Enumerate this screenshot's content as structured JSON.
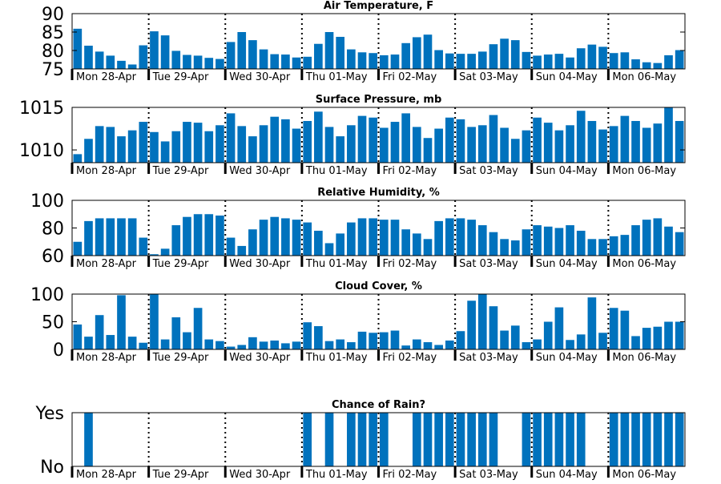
{
  "figure": {
    "bar_color": "#0072bd",
    "background": "#ffffff",
    "axis_color": "#000000"
  },
  "chart_data": [
    {
      "type": "bar",
      "title": "Air Temperature, F",
      "ylim": [
        75,
        90
      ],
      "yticks": [
        "75",
        "80",
        "85",
        "90"
      ],
      "grid": false,
      "day_labels": [
        "Mon 28-Apr",
        "Tue 29-Apr",
        "Wed 30-Apr",
        "Thu 01-May",
        "Fri 02-May",
        "Sat 03-May",
        "Sun 04-May",
        "Mon 06-May"
      ],
      "values": [
        85.9,
        81.3,
        79.7,
        78.6,
        77.2,
        76.2,
        81.4,
        85.2,
        84.1,
        79.9,
        78.8,
        78.6,
        78.0,
        77.7,
        82.3,
        85.0,
        82.8,
        80.3,
        79.0,
        78.9,
        78.1,
        78.3,
        81.8,
        85.0,
        83.7,
        80.3,
        79.5,
        79.3,
        78.7,
        78.9,
        82.0,
        83.6,
        84.3,
        80.1,
        79.2,
        79.1,
        79.1,
        79.7,
        81.7,
        83.2,
        82.8,
        79.6,
        78.6,
        78.9,
        79.1,
        78.1,
        80.6,
        81.6,
        81.0,
        79.3,
        79.5,
        77.6,
        76.8,
        76.6,
        78.7,
        80.1
      ]
    },
    {
      "type": "bar",
      "title": "Surface Pressure, mb",
      "ylim": [
        1008.5,
        1015.0
      ],
      "yticks": [
        "1010",
        "1015"
      ],
      "grid": false,
      "day_labels": [
        "Mon 28-Apr",
        "Tue 29-Apr",
        "Wed 30-Apr",
        "Thu 01-May",
        "Fri 02-May",
        "Sat 03-May",
        "Sun 04-May",
        "Mon 06-May"
      ],
      "values": [
        1009.5,
        1011.3,
        1012.8,
        1012.7,
        1011.6,
        1012.3,
        1013.3,
        1012.1,
        1011.0,
        1012.2,
        1013.3,
        1013.2,
        1012.2,
        1012.9,
        1014.3,
        1012.8,
        1011.6,
        1012.9,
        1013.9,
        1013.6,
        1012.5,
        1013.4,
        1014.5,
        1012.7,
        1011.6,
        1012.9,
        1014.0,
        1013.8,
        1012.6,
        1013.3,
        1014.3,
        1012.7,
        1011.4,
        1012.5,
        1013.8,
        1013.6,
        1012.7,
        1012.9,
        1014.1,
        1012.6,
        1011.3,
        1012.3,
        1013.8,
        1013.2,
        1012.3,
        1012.9,
        1014.6,
        1013.4,
        1012.4,
        1012.8,
        1014.0,
        1013.4,
        1012.6,
        1013.1,
        1015.0,
        1013.4
      ]
    },
    {
      "type": "bar",
      "title": "Relative Humidity, %",
      "ylim": [
        60,
        100
      ],
      "yticks": [
        "60",
        "80",
        "100"
      ],
      "grid": false,
      "day_labels": [
        "Mon 28-Apr",
        "Tue 29-Apr",
        "Wed 30-Apr",
        "Thu 01-May",
        "Fri 02-May",
        "Sat 03-May",
        "Sun 04-May",
        "Mon 06-May"
      ],
      "values": [
        70,
        85,
        87,
        87,
        87,
        87,
        73,
        61,
        65,
        82,
        88,
        90,
        90,
        89,
        73,
        67,
        79,
        86,
        88,
        87,
        86,
        84,
        78,
        69,
        76,
        84,
        87,
        87,
        86,
        86,
        79,
        76,
        72,
        85,
        87,
        87,
        86,
        82,
        77,
        72,
        71,
        79,
        82,
        81,
        80,
        82,
        78,
        72,
        72,
        74,
        75,
        82,
        86,
        87,
        81,
        77
      ]
    },
    {
      "type": "bar",
      "title": "Cloud Cover, %",
      "ylim": [
        0,
        100
      ],
      "yticks": [
        "0",
        "50",
        "100"
      ],
      "grid": false,
      "day_labels": [
        "Mon 28-Apr",
        "Tue 29-Apr",
        "Wed 30-Apr",
        "Thu 01-May",
        "Fri 02-May",
        "Sat 03-May",
        "Sun 04-May",
        "Mon 06-May"
      ],
      "values": [
        45,
        23,
        62,
        26,
        98,
        23,
        12,
        100,
        18,
        58,
        31,
        75,
        18,
        15,
        5,
        8,
        22,
        14,
        16,
        11,
        14,
        49,
        42,
        15,
        18,
        13,
        32,
        30,
        31,
        34,
        7,
        18,
        13,
        8,
        16,
        33,
        88,
        100,
        78,
        34,
        43,
        13,
        18,
        50,
        76,
        17,
        27,
        94,
        30,
        75,
        70,
        24,
        39,
        41,
        50,
        50
      ]
    },
    {
      "type": "bar",
      "title": "Chance of Rain?",
      "ylim": [
        0,
        1
      ],
      "yticks": [
        "No",
        "Yes"
      ],
      "grid": false,
      "day_labels": [
        "Mon 28-Apr",
        "Tue 29-Apr",
        "Wed 30-Apr",
        "Thu 01-May",
        "Fri 02-May",
        "Sat 03-May",
        "Sun 04-May",
        "Mon 06-May"
      ],
      "values": [
        0,
        1,
        0,
        0,
        0,
        0,
        0,
        0,
        0,
        0,
        0,
        0,
        0,
        0,
        0,
        0,
        0,
        0,
        0,
        0,
        0,
        1,
        0,
        1,
        0,
        1,
        1,
        1,
        1,
        0,
        0,
        1,
        1,
        1,
        1,
        1,
        1,
        1,
        1,
        0,
        0,
        1,
        1,
        1,
        1,
        1,
        1,
        0,
        0,
        1,
        1,
        1,
        1,
        1,
        1,
        1
      ]
    }
  ]
}
